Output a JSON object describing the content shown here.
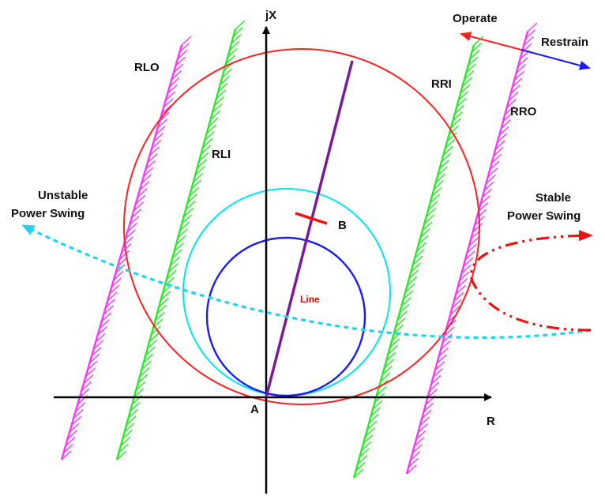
{
  "diagram": {
    "labels": {
      "jx_axis": "jX",
      "r_axis": "R",
      "origin": "A",
      "point_b": "B",
      "line": "Line",
      "rlo": "RLO",
      "rli": "RLI",
      "rri": "RRI",
      "rro": "RRO",
      "operate": "Operate",
      "restrain": "Restrain",
      "unstable_line1": "Unstable",
      "unstable_line2": "Power Swing",
      "stable_line1": "Stable",
      "stable_line2": "Power Swing"
    },
    "colors": {
      "axis": "#000000",
      "outer_circle": "#ff2020",
      "mid_circle": "#00e5ee",
      "inner_circle": "#1a1aff",
      "line_impedance": "#7a1a9a",
      "inner_blinders": "#22ee22",
      "outer_blinders": "#ff33ff",
      "operate_arrow": "#ff2020",
      "restrain_arrow": "#1a1aff",
      "unstable_swing": "#22d3ee",
      "stable_swing": "#ee1111",
      "marker_b": "#ee1111"
    }
  }
}
